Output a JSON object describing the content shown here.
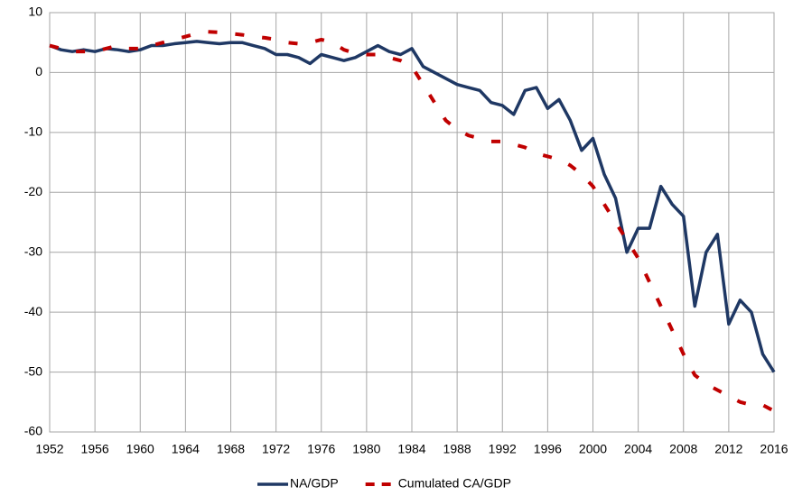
{
  "chart_data": {
    "type": "line",
    "x": [
      1952,
      1953,
      1954,
      1955,
      1956,
      1957,
      1958,
      1959,
      1960,
      1961,
      1962,
      1963,
      1964,
      1965,
      1966,
      1967,
      1968,
      1969,
      1970,
      1971,
      1972,
      1973,
      1974,
      1975,
      1976,
      1977,
      1978,
      1979,
      1980,
      1981,
      1982,
      1983,
      1984,
      1985,
      1986,
      1987,
      1988,
      1989,
      1990,
      1991,
      1992,
      1993,
      1994,
      1995,
      1996,
      1997,
      1998,
      1999,
      2000,
      2001,
      2002,
      2003,
      2004,
      2005,
      2006,
      2007,
      2008,
      2009,
      2010,
      2011,
      2012,
      2013,
      2014,
      2015,
      2016
    ],
    "series": [
      {
        "name": "NA/GDP",
        "color": "#1f3864",
        "dash": false,
        "values": [
          4.5,
          3.8,
          3.5,
          3.8,
          3.5,
          4,
          3.8,
          3.5,
          3.8,
          4.5,
          4.5,
          4.8,
          5,
          5.2,
          5,
          4.8,
          5,
          5,
          4.5,
          4,
          3,
          3,
          2.5,
          1.5,
          3,
          2.5,
          2,
          2.5,
          3.5,
          4.5,
          3.5,
          3,
          4,
          1,
          0,
          -1,
          -2,
          -2.5,
          -3,
          -5,
          -5.5,
          -7,
          -3,
          -2.5,
          -6,
          -4.5,
          -8,
          -13,
          -11,
          -17,
          -21,
          -30,
          -26,
          -26,
          -19,
          -22,
          -24,
          -39,
          -30,
          -27,
          -42,
          -38,
          -40,
          -47,
          -50
        ]
      },
      {
        "name": "Cumulated CA/GDP",
        "color": "#c00000",
        "dash": true,
        "values": [
          4.5,
          4,
          3.5,
          3.5,
          3.5,
          4,
          4.5,
          4,
          4,
          4.5,
          5,
          5.5,
          6,
          6.5,
          6.8,
          6.7,
          6.5,
          6.3,
          6,
          5.8,
          5.5,
          5,
          4.8,
          5,
          5.5,
          5,
          3.8,
          3.2,
          3,
          3,
          2.5,
          2,
          1,
          -2,
          -5,
          -8,
          -9.5,
          -10.5,
          -11,
          -11.5,
          -11.5,
          -12,
          -12.5,
          -13.5,
          -14,
          -14.5,
          -15.5,
          -17,
          -19,
          -22,
          -25,
          -28,
          -31,
          -35,
          -39,
          -43,
          -47,
          -50.5,
          -52,
          -53,
          -54,
          -55,
          -55.5,
          -55.5,
          -56.5
        ]
      }
    ],
    "xlim": [
      1952,
      2016
    ],
    "xticks": [
      1952,
      1956,
      1960,
      1964,
      1968,
      1972,
      1976,
      1980,
      1984,
      1988,
      1992,
      1996,
      2000,
      2004,
      2008,
      2012,
      2016
    ],
    "ylim": [
      -60,
      10
    ],
    "yticks": [
      -60,
      -50,
      -40,
      -30,
      -20,
      -10,
      0,
      10
    ],
    "grid": true,
    "legend": "bottom"
  }
}
